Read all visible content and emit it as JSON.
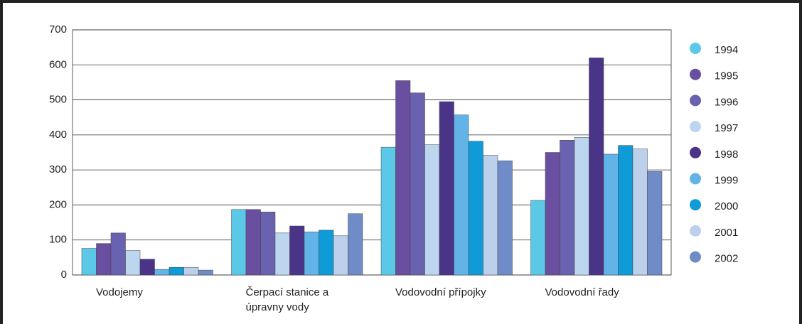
{
  "chart_data": {
    "type": "bar",
    "categories": [
      "Vodojemy",
      "Čerpací stanice a úpravny vody",
      "Vodovodní přípojky",
      "Vodovodní řady"
    ],
    "series": [
      {
        "name": "1994",
        "color": "#5bc8e8",
        "values": [
          76,
          187,
          365,
          213
        ]
      },
      {
        "name": "1995",
        "color": "#6a4fa0",
        "values": [
          90,
          187,
          555,
          350
        ]
      },
      {
        "name": "1996",
        "color": "#6862b0",
        "values": [
          120,
          180,
          520,
          385
        ]
      },
      {
        "name": "1997",
        "color": "#bcd6f0",
        "values": [
          70,
          120,
          372,
          393
        ]
      },
      {
        "name": "1998",
        "color": "#4a3488",
        "values": [
          45,
          140,
          495,
          620
        ]
      },
      {
        "name": "1999",
        "color": "#62b4e8",
        "values": [
          16,
          123,
          457,
          345
        ]
      },
      {
        "name": "2000",
        "color": "#0f9ad8",
        "values": [
          22,
          128,
          382,
          370
        ]
      },
      {
        "name": "2001",
        "color": "#bcd0ec",
        "values": [
          22,
          112,
          342,
          360
        ]
      },
      {
        "name": "2002",
        "color": "#6f8cc8",
        "values": [
          14,
          175,
          326,
          296
        ]
      }
    ],
    "ylim": [
      0,
      700
    ],
    "yticks": [
      0,
      100,
      200,
      300,
      400,
      500,
      600,
      700
    ],
    "grid": true,
    "legend": "right"
  }
}
